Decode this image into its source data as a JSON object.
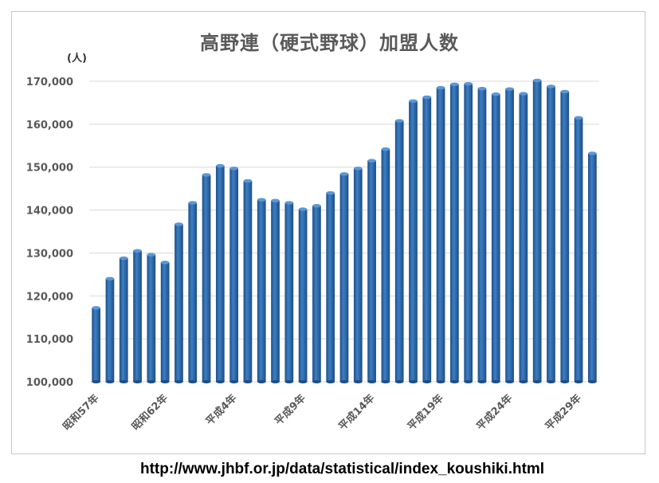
{
  "chart_data": {
    "type": "bar",
    "title": "高野連（硬式野球）加盟人数",
    "ylabel": "(人)",
    "xlabel": "",
    "ylim": [
      100000,
      170000
    ],
    "y_ticks": [
      "100,000",
      "110,000",
      "120,000",
      "130,000",
      "140,000",
      "150,000",
      "160,000",
      "170,000"
    ],
    "x_tick_labels": [
      "昭和57年",
      "",
      "",
      "",
      "",
      "昭和62年",
      "",
      "",
      "",
      "",
      "平成4年",
      "",
      "",
      "",
      "",
      "平成9年",
      "",
      "",
      "",
      "",
      "平成14年",
      "",
      "",
      "",
      "",
      "平成19年",
      "",
      "",
      "",
      "",
      "平成24年",
      "",
      "",
      "",
      "",
      "平成29年",
      "",
      ""
    ],
    "values": [
      117200,
      124000,
      128800,
      130500,
      129600,
      127800,
      136700,
      141700,
      148200,
      150300,
      149700,
      146800,
      142400,
      142200,
      141700,
      140200,
      141000,
      144000,
      148400,
      149700,
      151500,
      154200,
      160800,
      165400,
      166300,
      168500,
      169300,
      169400,
      168300,
      167000,
      168200,
      167100,
      170200,
      168800,
      167600,
      161500,
      153200
    ],
    "grid": true,
    "bar_color": "#2e6fb5"
  },
  "source": {
    "url_text": "http://www.jhbf.or.jp/data/statistical/index_koushiki.html"
  }
}
